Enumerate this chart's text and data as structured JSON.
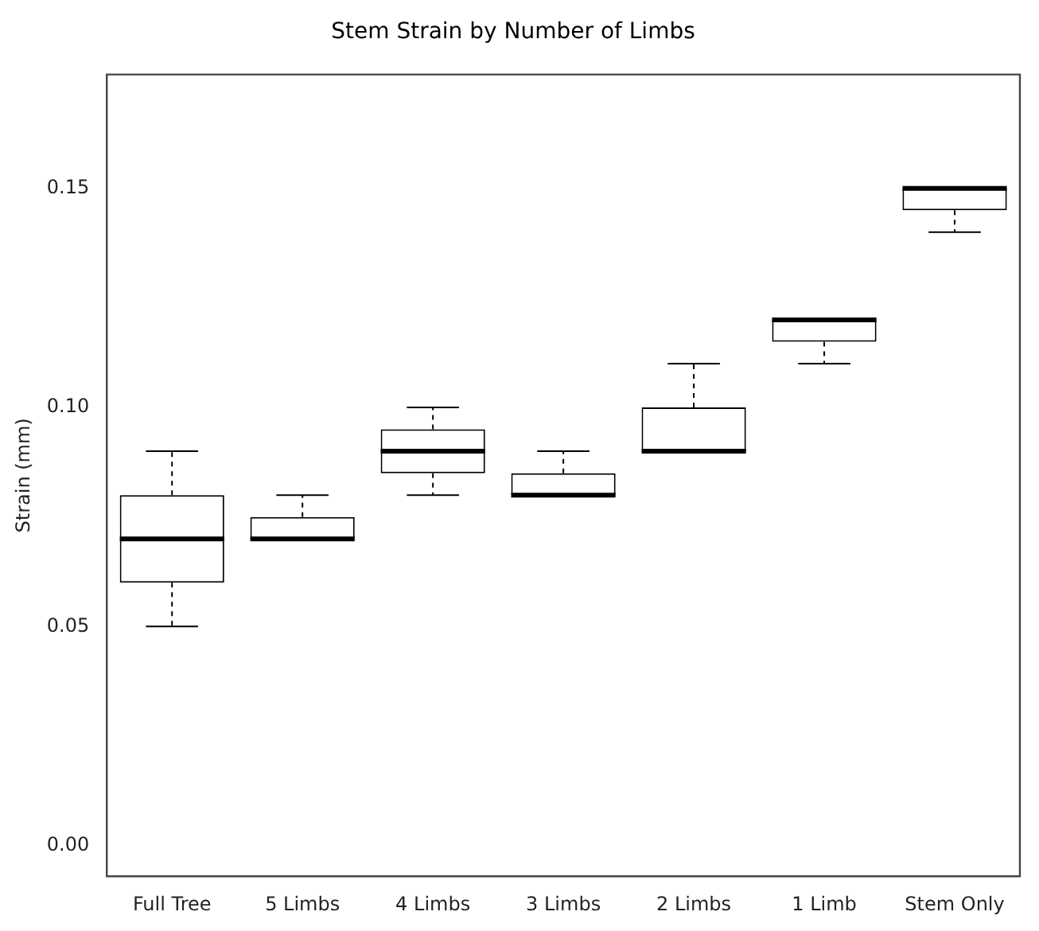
{
  "chart_data": {
    "type": "box",
    "title": "Stem Strain by Number of Limbs",
    "ylabel": "Strain (mm)",
    "categories": [
      "Full Tree",
      "5 Limbs",
      "4 Limbs",
      "3 Limbs",
      "2 Limbs",
      "1 Limb",
      "Stem Only"
    ],
    "boxes": [
      {
        "low": 0.05,
        "q1": 0.06,
        "median": 0.07,
        "q3": 0.08,
        "high": 0.09
      },
      {
        "low": 0.07,
        "q1": 0.07,
        "median": 0.07,
        "q3": 0.075,
        "high": 0.08
      },
      {
        "low": 0.08,
        "q1": 0.085,
        "median": 0.09,
        "q3": 0.095,
        "high": 0.1
      },
      {
        "low": 0.08,
        "q1": 0.08,
        "median": 0.08,
        "q3": 0.085,
        "high": 0.09
      },
      {
        "low": 0.09,
        "q1": 0.09,
        "median": 0.09,
        "q3": 0.1,
        "high": 0.11
      },
      {
        "low": 0.11,
        "q1": 0.115,
        "median": 0.12,
        "q3": 0.12,
        "high": 0.12
      },
      {
        "low": 0.14,
        "q1": 0.145,
        "median": 0.15,
        "q3": 0.15,
        "high": 0.15
      }
    ],
    "ylim": [
      -0.007,
      0.176
    ],
    "yticks": [
      {
        "value": 0,
        "label": "0.00"
      },
      {
        "value": 0.05,
        "label": "0.05"
      },
      {
        "value": 0.1,
        "label": "0.10"
      },
      {
        "value": 0.15,
        "label": "0.15"
      }
    ]
  }
}
